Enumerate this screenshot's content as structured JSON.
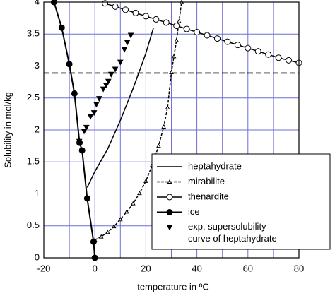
{
  "chart_data": {
    "type": "line",
    "xlabel": "temperature in ºC",
    "ylabel": "Solubility in mol/kg",
    "xlim": [
      -20,
      80
    ],
    "ylim": [
      0,
      4
    ],
    "xticks": [
      -20,
      0,
      20,
      40,
      60,
      80
    ],
    "x_minor_grid": [
      -10,
      10,
      30,
      50,
      70
    ],
    "yticks": [
      0,
      0.5,
      1,
      1.5,
      2,
      2.5,
      3,
      3.5,
      4
    ],
    "grid": true,
    "grid_color": "#6f6fd8",
    "legend": "lower right",
    "reference_line": {
      "y": 2.89,
      "style": "dashed",
      "color": "#000000"
    },
    "series": [
      {
        "name": "heptahydrate",
        "color": "#000000",
        "line": "solid",
        "marker": "none",
        "x": [
          -3,
          0,
          5,
          10,
          15,
          20,
          23
        ],
        "values": [
          1.1,
          1.35,
          1.7,
          2.15,
          2.65,
          3.2,
          3.6
        ]
      },
      {
        "name": "mirabilite",
        "color": "#000000",
        "line": "dashed",
        "marker": "triangle-open",
        "x": [
          0,
          2.5,
          5,
          7.5,
          10,
          12.5,
          15,
          17.5,
          20,
          22.5,
          25,
          27,
          28.5,
          30,
          31,
          32,
          33,
          34
        ],
        "values": [
          0.28,
          0.33,
          0.4,
          0.49,
          0.6,
          0.72,
          0.85,
          1.01,
          1.2,
          1.45,
          1.75,
          2.05,
          2.35,
          2.9,
          3.15,
          3.4,
          3.7,
          4
        ]
      },
      {
        "name": "thenardite",
        "color": "#000000",
        "line": "solid",
        "marker": "circle-open",
        "x": [
          4,
          8,
          12,
          16,
          20,
          24,
          28,
          32,
          36,
          40,
          44,
          48,
          52,
          56,
          60,
          64,
          68,
          72,
          76,
          80
        ],
        "values": [
          3.98,
          3.93,
          3.88,
          3.83,
          3.78,
          3.73,
          3.68,
          3.63,
          3.58,
          3.53,
          3.48,
          3.43,
          3.38,
          3.33,
          3.28,
          3.23,
          3.18,
          3.13,
          3.09,
          3.05
        ]
      },
      {
        "name": "ice",
        "color": "#000000",
        "line": "solid",
        "marker": "circle-filled",
        "x": [
          0,
          -0.5,
          -3,
          -5,
          -6,
          -8,
          -10,
          -13,
          -16
        ],
        "values": [
          0,
          0.25,
          0.93,
          1.68,
          1.8,
          2.57,
          3.03,
          3.6,
          4
        ]
      },
      {
        "name": "exp. supersolubility\ncurve of heptahydrate",
        "color": "#000000",
        "line": "none",
        "marker": "triangle-down-filled",
        "x": [
          -6.1,
          -4.2,
          -3.3,
          -1.7,
          -0.3,
          0.6,
          1.7,
          3.3,
          4.4,
          5.3,
          6.4,
          8,
          10,
          11.6,
          12.7,
          14.1
        ],
        "values": [
          1.82,
          1.98,
          2.04,
          2.21,
          2.27,
          2.4,
          2.49,
          2.64,
          2.7,
          2.76,
          2.87,
          2.95,
          3.06,
          3.26,
          3.37,
          3.48
        ]
      }
    ]
  }
}
